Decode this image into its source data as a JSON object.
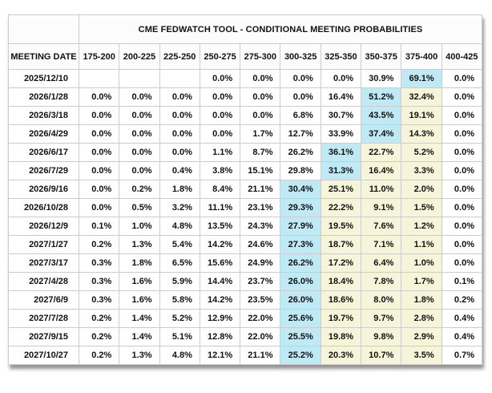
{
  "title": "CME FEDWATCH TOOL - CONDITIONAL MEETING PROBABILITIES",
  "colors": {
    "highlight_blue": "#bfe9f4",
    "highlight_yellow": "#f6f4d9",
    "header_bg": "#fcfcfc",
    "border": "#cccccc",
    "text": "#111111"
  },
  "table": {
    "date_column_header": "MEETING DATE",
    "rate_range_headers": [
      "175-200",
      "200-225",
      "225-250",
      "250-275",
      "275-300",
      "300-325",
      "325-350",
      "350-375",
      "375-400",
      "400-425"
    ],
    "rows": [
      {
        "date": "2025/12/10",
        "values": [
          "",
          "",
          "",
          "0.0%",
          "0.0%",
          "0.0%",
          "0.0%",
          "30.9%",
          "69.1%",
          "0.0%"
        ],
        "highlights": [
          "",
          "",
          "",
          "",
          "",
          "",
          "",
          "",
          "blue",
          ""
        ]
      },
      {
        "date": "2026/1/28",
        "values": [
          "0.0%",
          "0.0%",
          "0.0%",
          "0.0%",
          "0.0%",
          "0.0%",
          "16.4%",
          "51.2%",
          "32.4%",
          "0.0%"
        ],
        "highlights": [
          "",
          "",
          "",
          "",
          "",
          "",
          "",
          "blue",
          "yellow",
          ""
        ]
      },
      {
        "date": "2026/3/18",
        "values": [
          "0.0%",
          "0.0%",
          "0.0%",
          "0.0%",
          "0.0%",
          "6.8%",
          "30.7%",
          "43.5%",
          "19.1%",
          "0.0%"
        ],
        "highlights": [
          "",
          "",
          "",
          "",
          "",
          "",
          "",
          "blue",
          "yellow",
          ""
        ]
      },
      {
        "date": "2026/4/29",
        "values": [
          "0.0%",
          "0.0%",
          "0.0%",
          "0.0%",
          "1.7%",
          "12.7%",
          "33.9%",
          "37.4%",
          "14.3%",
          "0.0%"
        ],
        "highlights": [
          "",
          "",
          "",
          "",
          "",
          "",
          "",
          "blue",
          "yellow",
          ""
        ]
      },
      {
        "date": "2026/6/17",
        "values": [
          "0.0%",
          "0.0%",
          "0.0%",
          "1.1%",
          "8.7%",
          "26.2%",
          "36.1%",
          "22.7%",
          "5.2%",
          "0.0%"
        ],
        "highlights": [
          "",
          "",
          "",
          "",
          "",
          "",
          "blue",
          "yellow",
          "yellow",
          ""
        ]
      },
      {
        "date": "2026/7/29",
        "values": [
          "0.0%",
          "0.0%",
          "0.4%",
          "3.8%",
          "15.1%",
          "29.8%",
          "31.3%",
          "16.4%",
          "3.3%",
          "0.0%"
        ],
        "highlights": [
          "",
          "",
          "",
          "",
          "",
          "",
          "blue",
          "yellow",
          "yellow",
          ""
        ]
      },
      {
        "date": "2026/9/16",
        "values": [
          "0.0%",
          "0.2%",
          "1.8%",
          "8.4%",
          "21.1%",
          "30.4%",
          "25.1%",
          "11.0%",
          "2.0%",
          "0.0%"
        ],
        "highlights": [
          "",
          "",
          "",
          "",
          "",
          "blue",
          "yellow",
          "yellow",
          "yellow",
          ""
        ]
      },
      {
        "date": "2026/10/28",
        "values": [
          "0.0%",
          "0.5%",
          "3.2%",
          "11.1%",
          "23.1%",
          "29.3%",
          "22.2%",
          "9.1%",
          "1.5%",
          "0.0%"
        ],
        "highlights": [
          "",
          "",
          "",
          "",
          "",
          "blue",
          "yellow",
          "yellow",
          "yellow",
          ""
        ]
      },
      {
        "date": "2026/12/9",
        "values": [
          "0.1%",
          "1.0%",
          "4.8%",
          "13.5%",
          "24.3%",
          "27.9%",
          "19.5%",
          "7.6%",
          "1.2%",
          "0.0%"
        ],
        "highlights": [
          "",
          "",
          "",
          "",
          "",
          "blue",
          "yellow",
          "yellow",
          "yellow",
          ""
        ]
      },
      {
        "date": "2027/1/27",
        "values": [
          "0.2%",
          "1.3%",
          "5.4%",
          "14.2%",
          "24.6%",
          "27.3%",
          "18.7%",
          "7.1%",
          "1.1%",
          "0.0%"
        ],
        "highlights": [
          "",
          "",
          "",
          "",
          "",
          "blue",
          "yellow",
          "yellow",
          "yellow",
          ""
        ]
      },
      {
        "date": "2027/3/17",
        "values": [
          "0.3%",
          "1.8%",
          "6.5%",
          "15.6%",
          "24.9%",
          "26.2%",
          "17.2%",
          "6.4%",
          "1.0%",
          "0.0%"
        ],
        "highlights": [
          "",
          "",
          "",
          "",
          "",
          "blue",
          "yellow",
          "yellow",
          "yellow",
          ""
        ]
      },
      {
        "date": "2027/4/28",
        "values": [
          "0.3%",
          "1.6%",
          "5.9%",
          "14.4%",
          "23.7%",
          "26.0%",
          "18.4%",
          "7.8%",
          "1.7%",
          "0.1%"
        ],
        "highlights": [
          "",
          "",
          "",
          "",
          "",
          "blue",
          "yellow",
          "yellow",
          "yellow",
          ""
        ]
      },
      {
        "date": "2027/6/9",
        "values": [
          "0.3%",
          "1.6%",
          "5.8%",
          "14.2%",
          "23.5%",
          "26.0%",
          "18.6%",
          "8.0%",
          "1.8%",
          "0.2%"
        ],
        "highlights": [
          "",
          "",
          "",
          "",
          "",
          "blue",
          "yellow",
          "yellow",
          "yellow",
          ""
        ]
      },
      {
        "date": "2027/7/28",
        "values": [
          "0.2%",
          "1.4%",
          "5.2%",
          "12.9%",
          "22.0%",
          "25.6%",
          "19.7%",
          "9.7%",
          "2.8%",
          "0.4%"
        ],
        "highlights": [
          "",
          "",
          "",
          "",
          "",
          "blue",
          "yellow",
          "yellow",
          "yellow",
          ""
        ]
      },
      {
        "date": "2027/9/15",
        "values": [
          "0.2%",
          "1.4%",
          "5.1%",
          "12.8%",
          "22.0%",
          "25.5%",
          "19.8%",
          "9.8%",
          "2.9%",
          "0.4%"
        ],
        "highlights": [
          "",
          "",
          "",
          "",
          "",
          "blue",
          "yellow",
          "yellow",
          "yellow",
          ""
        ]
      },
      {
        "date": "2027/10/27",
        "values": [
          "0.2%",
          "1.3%",
          "4.8%",
          "12.1%",
          "21.1%",
          "25.2%",
          "20.3%",
          "10.7%",
          "3.5%",
          "0.7%"
        ],
        "highlights": [
          "",
          "",
          "",
          "",
          "",
          "blue",
          "yellow",
          "yellow",
          "yellow",
          ""
        ]
      }
    ]
  }
}
